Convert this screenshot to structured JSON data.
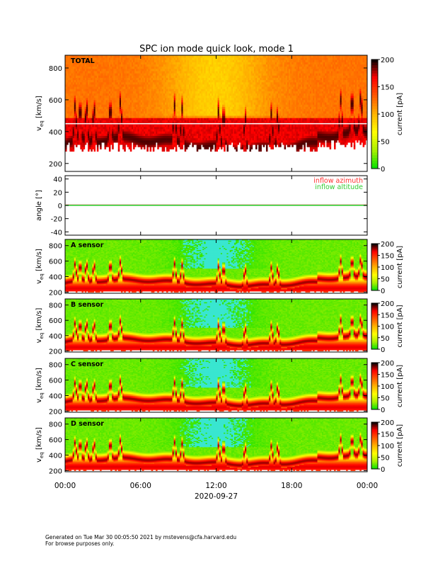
{
  "title": "SPC ion mode quick look, mode 1",
  "colors": {
    "scale": [
      "#00e000",
      "#a8f000",
      "#ffff00",
      "#ffb400",
      "#ff5a00",
      "#ff0000",
      "#000000"
    ],
    "inflow_azimuth": "#ff3030",
    "inflow_altitude": "#33cc33"
  },
  "chart_data": [
    {
      "type": "heatmap",
      "panel_label": "TOTAL",
      "ylabel": "v",
      "ylabel_sub": "eq",
      "ylabel_unit": " [km/s]",
      "ylim": [
        150,
        880
      ],
      "yticks": [
        200,
        400,
        600,
        800
      ],
      "colorbar_label": "current [pA]",
      "colorbar_range": [
        0,
        200
      ],
      "colorbar_ticks": [
        0,
        50,
        100,
        150,
        200
      ],
      "hline_value": 450,
      "style": "total"
    },
    {
      "type": "line",
      "ylabel": "angle [°]",
      "ylim": [
        -45,
        45
      ],
      "yticks": [
        -40,
        -20,
        0,
        20,
        40
      ],
      "series": [
        {
          "name": "inflow azimuth",
          "x_hours": [
            0,
            24
          ],
          "values": [
            0.5,
            0.5
          ]
        },
        {
          "name": "inflow altitude",
          "x_hours": [
            0,
            24
          ],
          "values": [
            0.2,
            0.2
          ]
        }
      ]
    },
    {
      "type": "heatmap",
      "panel_label": "A sensor",
      "ylabel": "v",
      "ylabel_sub": "eq",
      "ylabel_unit": " [km/s]",
      "ylim": [
        185,
        880
      ],
      "yticks": [
        200,
        400,
        600,
        800
      ],
      "colorbar_label": "current [pA]",
      "colorbar_range": [
        0,
        200
      ],
      "colorbar_ticks": [
        0,
        50,
        100,
        150,
        200
      ],
      "style": "sensor"
    },
    {
      "type": "heatmap",
      "panel_label": "B sensor",
      "ylabel": "v",
      "ylabel_sub": "eq",
      "ylabel_unit": " [km/s]",
      "ylim": [
        185,
        880
      ],
      "yticks": [
        200,
        400,
        600,
        800
      ],
      "colorbar_label": "current [pA]",
      "colorbar_range": [
        0,
        200
      ],
      "colorbar_ticks": [
        0,
        50,
        100,
        150,
        200
      ],
      "style": "sensor"
    },
    {
      "type": "heatmap",
      "panel_label": "C sensor",
      "ylabel": "v",
      "ylabel_sub": "eq",
      "ylabel_unit": " [km/s]",
      "ylim": [
        185,
        880
      ],
      "yticks": [
        200,
        400,
        600,
        800
      ],
      "colorbar_label": "current [pA]",
      "colorbar_range": [
        0,
        200
      ],
      "colorbar_ticks": [
        0,
        50,
        100,
        150,
        200
      ],
      "style": "sensor"
    },
    {
      "type": "heatmap",
      "panel_label": "D sensor",
      "ylabel": "v",
      "ylabel_sub": "eq",
      "ylabel_unit": " [km/s]",
      "ylim": [
        185,
        880
      ],
      "yticks": [
        200,
        400,
        600,
        800
      ],
      "colorbar_label": "current [pA]",
      "colorbar_range": [
        0,
        200
      ],
      "colorbar_ticks": [
        0,
        50,
        100,
        150,
        200
      ],
      "style": "sensor"
    }
  ],
  "xaxis": {
    "ticks_hours": [
      0,
      6,
      12,
      18,
      24
    ],
    "tick_labels": [
      "00:00",
      "06:00",
      "12:00",
      "18:00",
      "00:00"
    ],
    "date_label": "2020-09-27"
  },
  "footer": {
    "line1": "Generated on Tue Mar 30 00:05:50 2021 by mstevens@cfa.harvard.edu",
    "line2": "For browse purposes only."
  }
}
